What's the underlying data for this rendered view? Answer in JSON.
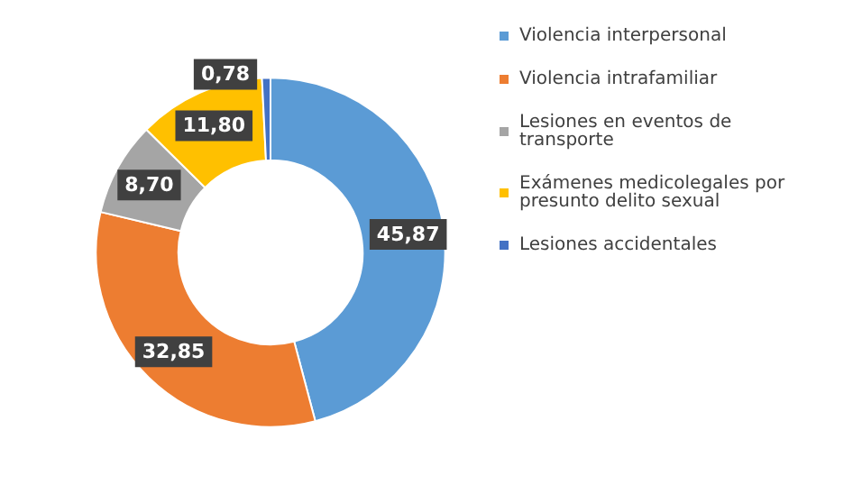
{
  "chart_data": {
    "type": "donut",
    "categories": [
      "Violencia interpersonal",
      "Violencia intrafamiliar",
      "Lesiones en eventos de transporte",
      "Exámenes medicolegales por presunto delito sexual",
      "Lesiones accidentales"
    ],
    "values": [
      45.87,
      32.85,
      8.7,
      11.8,
      0.78
    ],
    "value_labels": [
      "45,87",
      "32,85",
      "8,70",
      "11,80",
      "0,78"
    ],
    "colors": [
      "#5b9bd5",
      "#ed7d31",
      "#a5a5a5",
      "#ffc000",
      "#4472c4"
    ],
    "legend": "right"
  }
}
